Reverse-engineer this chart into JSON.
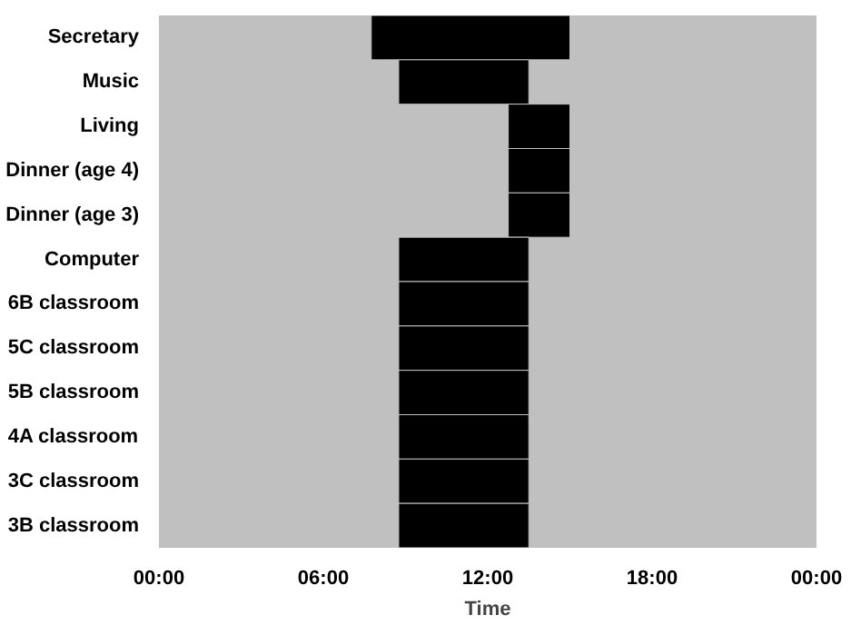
{
  "chart_data": {
    "type": "bar",
    "orientation": "horizontal",
    "xlabel": "Time",
    "categories": [
      "Secretary",
      "Music",
      "Living",
      "Dinner (age 4)",
      "Dinner (age 3)",
      "Computer",
      "6B classroom",
      "5C classroom",
      "5B classroom",
      "4A classroom",
      "3C classroom",
      "3B classroom"
    ],
    "base": [
      7.75,
      8.75,
      12.75,
      12.75,
      12.75,
      8.75,
      8.75,
      8.75,
      8.75,
      8.75,
      8.75,
      8.75
    ],
    "values": [
      7.25,
      4.75,
      2.25,
      2.25,
      2.25,
      4.75,
      4.75,
      4.75,
      4.75,
      4.75,
      4.75,
      4.75
    ],
    "color": "#000000",
    "xlim": [
      0,
      24
    ],
    "xticks": [
      {
        "value": 0,
        "label": "00:00"
      },
      {
        "value": 6,
        "label": "06:00"
      },
      {
        "value": 12,
        "label": "12:00"
      },
      {
        "value": 18,
        "label": "18:00"
      },
      {
        "value": 24,
        "label": "00:00"
      }
    ]
  }
}
